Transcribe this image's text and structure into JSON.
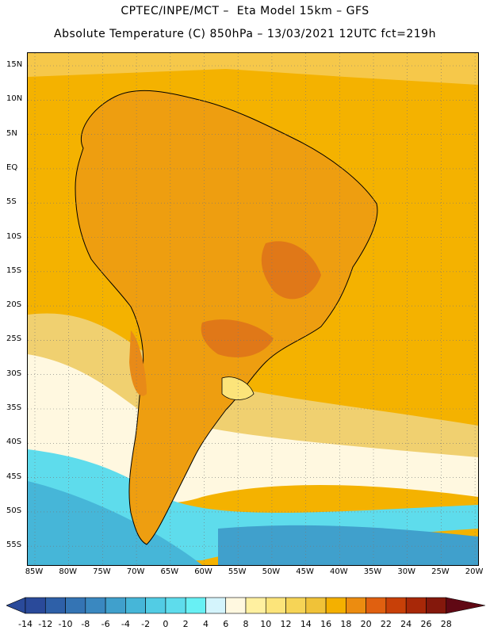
{
  "header": {
    "line1": "CPTEC/INPE/MCT –  Eta Model 15km – GFS",
    "line2": "Absolute Temperature (C) 850hPa – 13/03/2021 12UTC fct=219h"
  },
  "map": {
    "region": "South America",
    "lat_labels": [
      "15N",
      "10N",
      "5N",
      "EQ",
      "5S",
      "10S",
      "15S",
      "20S",
      "25S",
      "30S",
      "35S",
      "40S",
      "45S",
      "50S",
      "55S"
    ],
    "lon_labels": [
      "85W",
      "80W",
      "75W",
      "70W",
      "65W",
      "60W",
      "55W",
      "50W",
      "45W",
      "40W",
      "35W",
      "30W",
      "25W",
      "20W"
    ],
    "background_color": "#f4b200",
    "grid": "dotted"
  },
  "colorbar": {
    "labels": [
      "-14",
      "-12",
      "-10",
      "-8",
      "-6",
      "-4",
      "-2",
      "0",
      "2",
      "4",
      "6",
      "8",
      "10",
      "12",
      "14",
      "16",
      "18",
      "20",
      "22",
      "24",
      "26",
      "28"
    ],
    "colors": [
      "#2a4a9a",
      "#2e60a8",
      "#3474b4",
      "#3a88c0",
      "#40a0cc",
      "#46b6d8",
      "#52cce4",
      "#5edcec",
      "#68f0f4",
      "#d4f4fc",
      "#fff8e0",
      "#fff0a0",
      "#fce47a",
      "#f6d456",
      "#f0c238",
      "#f4b000",
      "#ec8c10",
      "#e06010",
      "#c84008",
      "#a82808",
      "#84180c",
      "#600814"
    ]
  }
}
